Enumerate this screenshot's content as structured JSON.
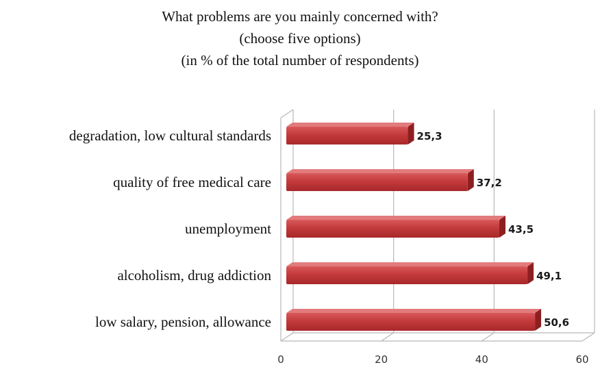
{
  "chart_data": {
    "type": "bar",
    "orientation": "horizontal",
    "title": "What problems are you mainly concerned with?",
    "subtitle": [
      "(choose five options)",
      "(in % of the total number of respondents)"
    ],
    "categories": [
      "degradation, low cultural standards",
      "quality of free medical care",
      "unemployment",
      "alcoholism, drug addiction",
      "low salary, pension, allowance"
    ],
    "values": [
      25.3,
      37.2,
      43.5,
      49.1,
      50.6
    ],
    "value_labels": [
      "25,3",
      "37,2",
      "43,5",
      "49,1",
      "50,6"
    ],
    "xlim": [
      0,
      60
    ],
    "xticks": [
      "0",
      "20",
      "40",
      "60"
    ],
    "grid": true,
    "style": "3d",
    "bar_color": "#c0393b"
  }
}
